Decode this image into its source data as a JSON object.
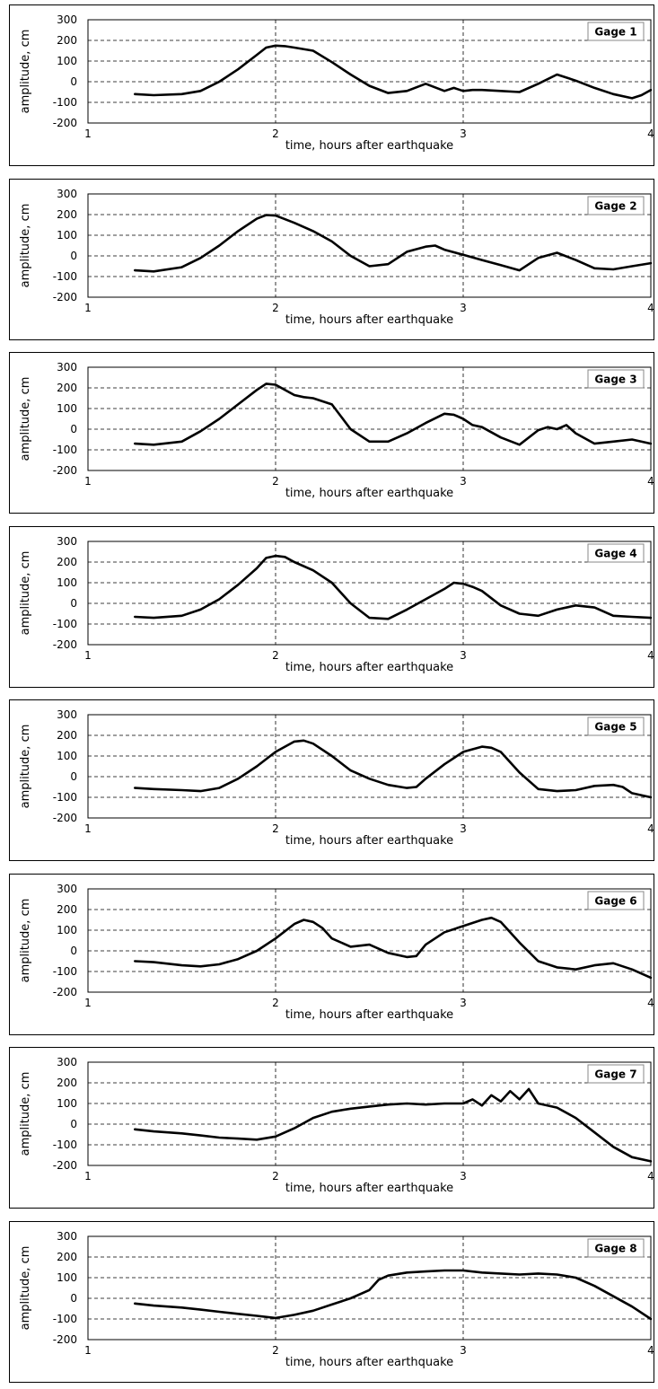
{
  "chart_data": [
    {
      "type": "line",
      "title": "",
      "legend_label": "Gage 1",
      "xlabel": "time, hours after earthquake",
      "ylabel": "amplitude, cm",
      "xlim": [
        1,
        4
      ],
      "ylim": [
        -200,
        300
      ],
      "xticks": [
        1,
        2,
        3,
        4
      ],
      "yticks": [
        -200,
        -100,
        0,
        100,
        200,
        300
      ],
      "grid": true,
      "grid_style": "dashed",
      "line_color": "#000000",
      "series": [
        {
          "x": [
            1.25,
            1.35,
            1.5,
            1.6,
            1.7,
            1.8,
            1.9,
            1.95,
            2.0,
            2.05,
            2.1,
            2.2,
            2.3,
            2.4,
            2.5,
            2.6,
            2.7,
            2.8,
            2.9,
            2.95,
            3.0,
            3.05,
            3.1,
            3.2,
            3.3,
            3.4,
            3.5,
            3.6,
            3.7,
            3.8,
            3.9,
            3.95,
            4.0
          ],
          "y": [
            -60,
            -65,
            -60,
            -45,
            0,
            60,
            130,
            165,
            175,
            172,
            165,
            150,
            95,
            35,
            -20,
            -55,
            -45,
            -10,
            -45,
            -30,
            -45,
            -40,
            -40,
            -45,
            -50,
            -10,
            35,
            5,
            -30,
            -60,
            -80,
            -65,
            -40
          ]
        }
      ]
    },
    {
      "type": "line",
      "title": "",
      "legend_label": "Gage 2",
      "xlabel": "time, hours after earthquake",
      "ylabel": "amplitude, cm",
      "xlim": [
        1,
        4
      ],
      "ylim": [
        -200,
        300
      ],
      "xticks": [
        1,
        2,
        3,
        4
      ],
      "yticks": [
        -200,
        -100,
        0,
        100,
        200,
        300
      ],
      "grid": true,
      "grid_style": "dashed",
      "line_color": "#000000",
      "series": [
        {
          "x": [
            1.25,
            1.35,
            1.5,
            1.6,
            1.7,
            1.8,
            1.9,
            1.95,
            2.0,
            2.1,
            2.2,
            2.3,
            2.4,
            2.5,
            2.6,
            2.7,
            2.8,
            2.85,
            2.9,
            3.0,
            3.1,
            3.2,
            3.3,
            3.4,
            3.5,
            3.6,
            3.7,
            3.8,
            3.9,
            4.0
          ],
          "y": [
            -70,
            -75,
            -55,
            -10,
            50,
            120,
            180,
            198,
            195,
            160,
            120,
            70,
            0,
            -50,
            -40,
            20,
            45,
            50,
            30,
            5,
            -20,
            -45,
            -70,
            -10,
            15,
            -20,
            -60,
            -65,
            -50,
            -35
          ]
        }
      ]
    },
    {
      "type": "line",
      "title": "",
      "legend_label": "Gage 3",
      "xlabel": "time, hours after earthquake",
      "ylabel": "amplitude, cm",
      "xlim": [
        1,
        4
      ],
      "ylim": [
        -200,
        300
      ],
      "xticks": [
        1,
        2,
        3,
        4
      ],
      "yticks": [
        -200,
        -100,
        0,
        100,
        200,
        300
      ],
      "grid": true,
      "grid_style": "dashed",
      "line_color": "#000000",
      "series": [
        {
          "x": [
            1.25,
            1.35,
            1.5,
            1.6,
            1.7,
            1.8,
            1.9,
            1.95,
            2.0,
            2.05,
            2.1,
            2.15,
            2.2,
            2.3,
            2.4,
            2.5,
            2.6,
            2.7,
            2.8,
            2.9,
            2.95,
            3.0,
            3.05,
            3.1,
            3.2,
            3.3,
            3.4,
            3.45,
            3.5,
            3.55,
            3.6,
            3.7,
            3.8,
            3.9,
            4.0
          ],
          "y": [
            -70,
            -75,
            -60,
            -10,
            50,
            120,
            190,
            220,
            215,
            190,
            165,
            155,
            150,
            120,
            0,
            -60,
            -60,
            -20,
            30,
            75,
            70,
            50,
            20,
            10,
            -40,
            -75,
            -5,
            10,
            0,
            20,
            -20,
            -70,
            -60,
            -50,
            -70
          ]
        }
      ]
    },
    {
      "type": "line",
      "title": "",
      "legend_label": "Gage 4",
      "xlabel": "time, hours after earthquake",
      "ylabel": "amplitude, cm",
      "xlim": [
        1,
        4
      ],
      "ylim": [
        -200,
        300
      ],
      "xticks": [
        1,
        2,
        3,
        4
      ],
      "yticks": [
        -200,
        -100,
        0,
        100,
        200,
        300
      ],
      "grid": true,
      "grid_style": "dashed",
      "line_color": "#000000",
      "series": [
        {
          "x": [
            1.25,
            1.35,
            1.5,
            1.6,
            1.7,
            1.8,
            1.9,
            1.95,
            2.0,
            2.05,
            2.1,
            2.2,
            2.3,
            2.4,
            2.5,
            2.6,
            2.7,
            2.8,
            2.9,
            2.95,
            3.0,
            3.05,
            3.1,
            3.2,
            3.3,
            3.4,
            3.5,
            3.6,
            3.7,
            3.8,
            3.9,
            4.0
          ],
          "y": [
            -65,
            -70,
            -60,
            -30,
            20,
            90,
            170,
            220,
            230,
            225,
            200,
            160,
            100,
            0,
            -70,
            -75,
            -30,
            20,
            70,
            100,
            95,
            80,
            60,
            -10,
            -50,
            -60,
            -30,
            -10,
            -20,
            -60,
            -65,
            -70
          ]
        }
      ]
    },
    {
      "type": "line",
      "title": "",
      "legend_label": "Gage 5",
      "xlabel": "time, hours after earthquake",
      "ylabel": "amplitude, cm",
      "xlim": [
        1,
        4
      ],
      "ylim": [
        -200,
        300
      ],
      "xticks": [
        1,
        2,
        3,
        4
      ],
      "yticks": [
        -200,
        -100,
        0,
        100,
        200,
        300
      ],
      "grid": true,
      "grid_style": "dashed",
      "line_color": "#000000",
      "series": [
        {
          "x": [
            1.25,
            1.35,
            1.5,
            1.6,
            1.7,
            1.8,
            1.9,
            2.0,
            2.1,
            2.15,
            2.2,
            2.3,
            2.4,
            2.5,
            2.6,
            2.7,
            2.75,
            2.8,
            2.9,
            3.0,
            3.1,
            3.15,
            3.2,
            3.3,
            3.4,
            3.5,
            3.6,
            3.7,
            3.8,
            3.85,
            3.9,
            4.0
          ],
          "y": [
            -55,
            -60,
            -65,
            -70,
            -55,
            -10,
            50,
            120,
            170,
            175,
            160,
            100,
            30,
            -10,
            -40,
            -55,
            -50,
            -10,
            60,
            120,
            145,
            140,
            120,
            20,
            -60,
            -70,
            -65,
            -45,
            -40,
            -50,
            -80,
            -100
          ]
        }
      ]
    },
    {
      "type": "line",
      "title": "",
      "legend_label": "Gage 6",
      "xlabel": "time, hours after earthquake",
      "ylabel": "amplitude, cm",
      "xlim": [
        1,
        4
      ],
      "ylim": [
        -200,
        300
      ],
      "xticks": [
        1,
        2,
        3,
        4
      ],
      "yticks": [
        -200,
        -100,
        0,
        100,
        200,
        300
      ],
      "grid": true,
      "grid_style": "dashed",
      "line_color": "#000000",
      "series": [
        {
          "x": [
            1.25,
            1.35,
            1.5,
            1.6,
            1.7,
            1.8,
            1.9,
            2.0,
            2.1,
            2.15,
            2.2,
            2.25,
            2.3,
            2.4,
            2.5,
            2.6,
            2.7,
            2.75,
            2.8,
            2.9,
            3.0,
            3.1,
            3.15,
            3.2,
            3.3,
            3.4,
            3.5,
            3.6,
            3.7,
            3.8,
            3.9,
            4.0
          ],
          "y": [
            -50,
            -55,
            -70,
            -75,
            -65,
            -40,
            0,
            60,
            130,
            150,
            140,
            110,
            60,
            20,
            30,
            -10,
            -30,
            -25,
            30,
            90,
            120,
            150,
            160,
            140,
            40,
            -50,
            -80,
            -90,
            -70,
            -60,
            -90,
            -130
          ]
        }
      ]
    },
    {
      "type": "line",
      "title": "",
      "legend_label": "Gage 7",
      "xlabel": "time, hours after earthquake",
      "ylabel": "amplitude, cm",
      "xlim": [
        1,
        4
      ],
      "ylim": [
        -200,
        300
      ],
      "xticks": [
        1,
        2,
        3,
        4
      ],
      "yticks": [
        -200,
        -100,
        0,
        100,
        200,
        300
      ],
      "grid": true,
      "grid_style": "dashed",
      "line_color": "#000000",
      "series": [
        {
          "x": [
            1.25,
            1.35,
            1.5,
            1.6,
            1.7,
            1.8,
            1.9,
            2.0,
            2.1,
            2.2,
            2.3,
            2.4,
            2.5,
            2.6,
            2.7,
            2.8,
            2.9,
            3.0,
            3.05,
            3.1,
            3.15,
            3.2,
            3.25,
            3.3,
            3.35,
            3.4,
            3.5,
            3.6,
            3.7,
            3.8,
            3.9,
            4.0
          ],
          "y": [
            -25,
            -35,
            -45,
            -55,
            -65,
            -70,
            -75,
            -60,
            -20,
            30,
            60,
            75,
            85,
            95,
            100,
            95,
            100,
            100,
            120,
            90,
            140,
            110,
            160,
            120,
            170,
            100,
            80,
            30,
            -40,
            -110,
            -160,
            -180
          ]
        }
      ]
    },
    {
      "type": "line",
      "title": "",
      "legend_label": "Gage 8",
      "xlabel": "time, hours after earthquake",
      "ylabel": "amplitude, cm",
      "xlim": [
        1,
        4
      ],
      "ylim": [
        -200,
        300
      ],
      "xticks": [
        1,
        2,
        3,
        4
      ],
      "yticks": [
        -200,
        -100,
        0,
        100,
        200,
        300
      ],
      "grid": true,
      "grid_style": "dashed",
      "line_color": "#000000",
      "series": [
        {
          "x": [
            1.25,
            1.35,
            1.5,
            1.6,
            1.7,
            1.8,
            1.9,
            2.0,
            2.1,
            2.2,
            2.3,
            2.4,
            2.5,
            2.55,
            2.6,
            2.7,
            2.8,
            2.9,
            3.0,
            3.1,
            3.2,
            3.3,
            3.4,
            3.5,
            3.6,
            3.7,
            3.8,
            3.9,
            4.0
          ],
          "y": [
            -25,
            -35,
            -45,
            -55,
            -65,
            -75,
            -85,
            -95,
            -80,
            -60,
            -30,
            0,
            40,
            90,
            110,
            125,
            130,
            135,
            135,
            125,
            120,
            115,
            120,
            115,
            100,
            60,
            10,
            -40,
            -100
          ]
        }
      ]
    }
  ]
}
